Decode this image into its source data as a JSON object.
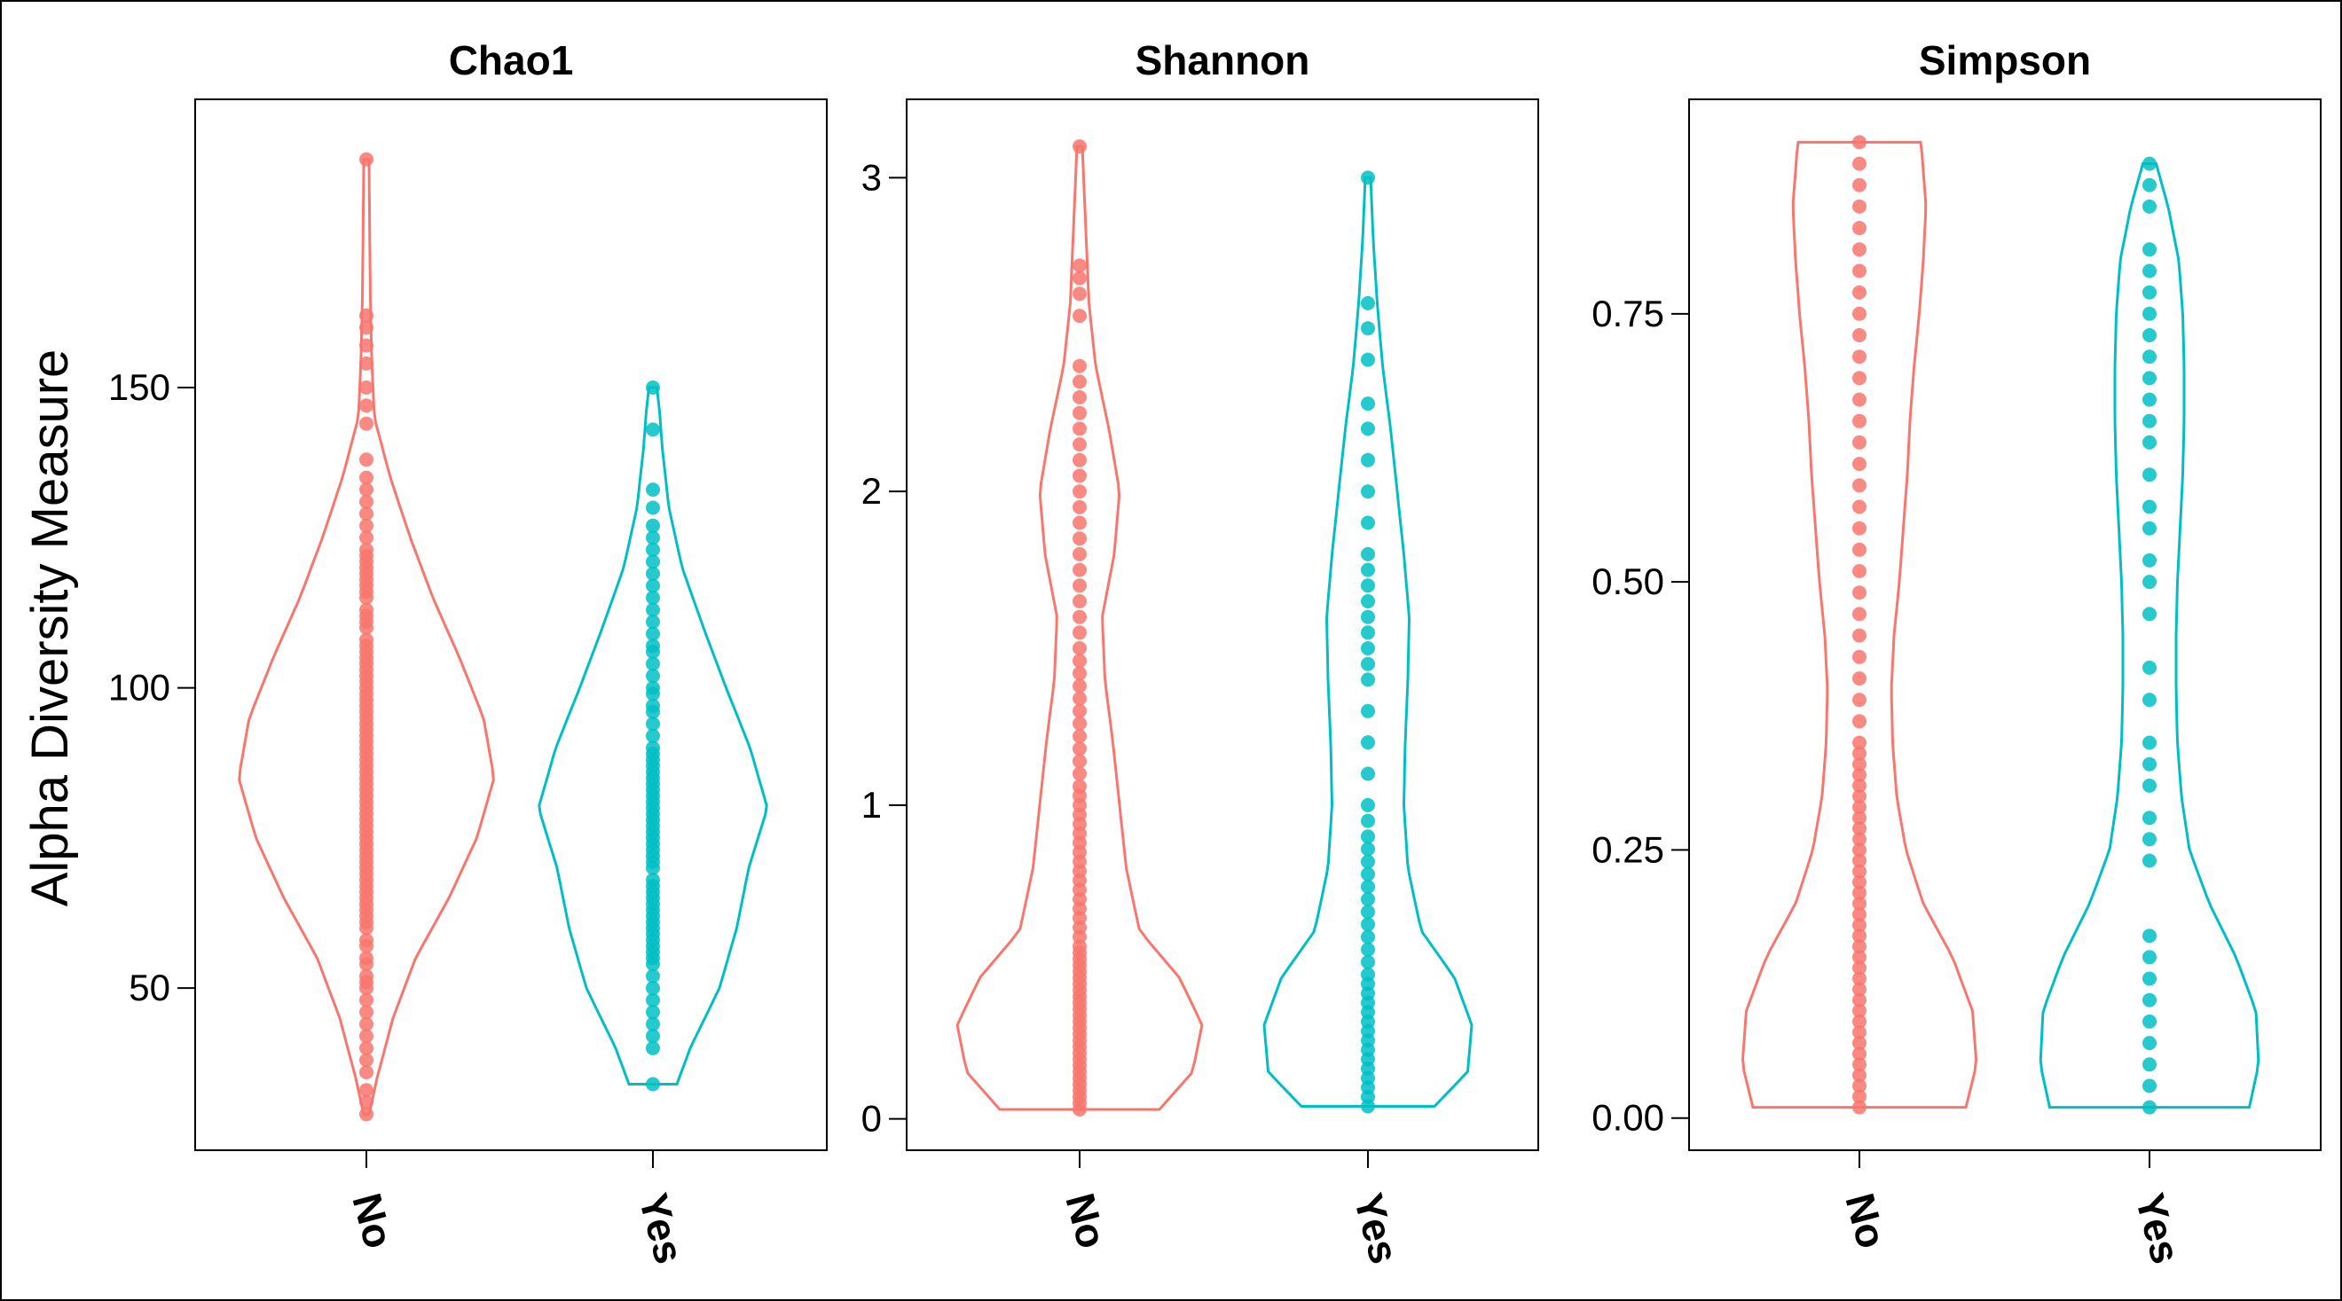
{
  "chart_data": {
    "type": "violin",
    "ylabel": "Alpha Diversity Measure",
    "categories": [
      "No",
      "Yes"
    ],
    "colors": {
      "No": "#F8766D",
      "Yes": "#00BFC4",
      "axis": "#000000"
    },
    "panels": [
      {
        "title": "Chao1",
        "ylim": [
          23,
          198
        ],
        "ticks": [
          50,
          100,
          150
        ],
        "tick_labels": [
          "50",
          "100",
          "150"
        ],
        "groups": [
          {
            "name": "No",
            "min": 29,
            "max": 188,
            "density": [
              [
                29,
                0.02
              ],
              [
                35,
                0.08
              ],
              [
                45,
                0.2
              ],
              [
                55,
                0.37
              ],
              [
                65,
                0.62
              ],
              [
                75,
                0.83
              ],
              [
                85,
                0.96
              ],
              [
                95,
                0.88
              ],
              [
                105,
                0.7
              ],
              [
                115,
                0.5
              ],
              [
                125,
                0.33
              ],
              [
                135,
                0.18
              ],
              [
                145,
                0.06
              ],
              [
                155,
                0.04
              ],
              [
                165,
                0.03
              ],
              [
                175,
                0.025
              ],
              [
                188,
                0.02
              ]
            ],
            "points": [
              29,
              31,
              33,
              36,
              38,
              40,
              42,
              44,
              46,
              48,
              50,
              51,
              52,
              54,
              55,
              57,
              58,
              60,
              61,
              62,
              63,
              64,
              65,
              66,
              67,
              68,
              69,
              70,
              71,
              72,
              73,
              74,
              75,
              76,
              77,
              78,
              79,
              80,
              81,
              82,
              83,
              84,
              85,
              86,
              87,
              88,
              89,
              90,
              91,
              92,
              93,
              94,
              95,
              96,
              97,
              98,
              99,
              100,
              101,
              102,
              103,
              104,
              105,
              106,
              107,
              108,
              110,
              111,
              112,
              113,
              115,
              116,
              117,
              118,
              119,
              120,
              121,
              122,
              123,
              125,
              127,
              129,
              131,
              133,
              135,
              138,
              144,
              147,
              150,
              154,
              157,
              160,
              162,
              188
            ]
          },
          {
            "name": "Yes",
            "min": 34,
            "max": 150,
            "density": [
              [
                34,
                0.18
              ],
              [
                40,
                0.28
              ],
              [
                50,
                0.5
              ],
              [
                60,
                0.63
              ],
              [
                70,
                0.72
              ],
              [
                80,
                0.86
              ],
              [
                90,
                0.73
              ],
              [
                100,
                0.55
              ],
              [
                110,
                0.38
              ],
              [
                120,
                0.22
              ],
              [
                130,
                0.12
              ],
              [
                140,
                0.07
              ],
              [
                146,
                0.05
              ],
              [
                150,
                0.03
              ]
            ],
            "points": [
              34,
              40,
              42,
              44,
              46,
              48,
              50,
              52,
              54,
              55,
              56,
              57,
              58,
              59,
              60,
              61,
              62,
              63,
              64,
              65,
              66,
              67,
              68,
              70,
              71,
              72,
              73,
              74,
              75,
              76,
              77,
              78,
              79,
              80,
              81,
              82,
              83,
              84,
              85,
              86,
              87,
              88,
              89,
              90,
              92,
              94,
              96,
              97,
              99,
              100,
              102,
              104,
              106,
              107,
              109,
              111,
              113,
              115,
              117,
              119,
              121,
              123,
              125,
              127,
              130,
              133,
              143,
              150
            ]
          }
        ]
      },
      {
        "title": "Shannon",
        "ylim": [
          -0.1,
          3.25
        ],
        "ticks": [
          0,
          1,
          2,
          3
        ],
        "tick_labels": [
          "0",
          "1",
          "2",
          "3"
        ],
        "groups": [
          {
            "name": "No",
            "min": 0.03,
            "max": 3.1,
            "density": [
              [
                0.03,
                0.6
              ],
              [
                0.15,
                0.85
              ],
              [
                0.3,
                0.92
              ],
              [
                0.45,
                0.75
              ],
              [
                0.6,
                0.45
              ],
              [
                0.8,
                0.35
              ],
              [
                1.0,
                0.3
              ],
              [
                1.2,
                0.25
              ],
              [
                1.4,
                0.19
              ],
              [
                1.6,
                0.17
              ],
              [
                1.8,
                0.26
              ],
              [
                2.0,
                0.3
              ],
              [
                2.2,
                0.22
              ],
              [
                2.4,
                0.12
              ],
              [
                2.6,
                0.07
              ],
              [
                2.8,
                0.05
              ],
              [
                3.0,
                0.03
              ],
              [
                3.1,
                0.02
              ]
            ],
            "points": [
              0.03,
              0.05,
              0.07,
              0.09,
              0.11,
              0.13,
              0.15,
              0.17,
              0.19,
              0.21,
              0.23,
              0.25,
              0.27,
              0.29,
              0.31,
              0.33,
              0.35,
              0.37,
              0.39,
              0.41,
              0.43,
              0.45,
              0.47,
              0.49,
              0.51,
              0.53,
              0.55,
              0.58,
              0.61,
              0.64,
              0.67,
              0.7,
              0.73,
              0.76,
              0.79,
              0.82,
              0.85,
              0.88,
              0.91,
              0.94,
              0.97,
              1.0,
              1.03,
              1.06,
              1.1,
              1.14,
              1.18,
              1.22,
              1.26,
              1.3,
              1.34,
              1.38,
              1.42,
              1.46,
              1.5,
              1.55,
              1.6,
              1.65,
              1.7,
              1.75,
              1.8,
              1.85,
              1.9,
              1.95,
              2.0,
              2.05,
              2.1,
              2.15,
              2.2,
              2.25,
              2.3,
              2.35,
              2.4,
              2.56,
              2.63,
              2.68,
              2.72,
              3.1
            ]
          },
          {
            "name": "Yes",
            "min": 0.04,
            "max": 3.0,
            "density": [
              [
                0.04,
                0.5
              ],
              [
                0.15,
                0.75
              ],
              [
                0.3,
                0.78
              ],
              [
                0.45,
                0.65
              ],
              [
                0.6,
                0.4
              ],
              [
                0.8,
                0.3
              ],
              [
                1.0,
                0.27
              ],
              [
                1.2,
                0.28
              ],
              [
                1.4,
                0.3
              ],
              [
                1.6,
                0.31
              ],
              [
                1.8,
                0.27
              ],
              [
                2.0,
                0.22
              ],
              [
                2.2,
                0.17
              ],
              [
                2.4,
                0.11
              ],
              [
                2.6,
                0.07
              ],
              [
                2.8,
                0.04
              ],
              [
                3.0,
                0.02
              ]
            ],
            "points": [
              0.04,
              0.07,
              0.1,
              0.13,
              0.16,
              0.19,
              0.22,
              0.25,
              0.28,
              0.31,
              0.34,
              0.37,
              0.4,
              0.43,
              0.46,
              0.5,
              0.54,
              0.58,
              0.62,
              0.66,
              0.7,
              0.74,
              0.78,
              0.82,
              0.86,
              0.9,
              0.95,
              1.0,
              1.1,
              1.2,
              1.3,
              1.4,
              1.45,
              1.5,
              1.55,
              1.6,
              1.65,
              1.7,
              1.75,
              1.8,
              1.9,
              2.0,
              2.1,
              2.2,
              2.28,
              2.42,
              2.52,
              2.6,
              3.0
            ]
          }
        ]
      },
      {
        "title": "Simpson",
        "ylim": [
          -0.03,
          0.95
        ],
        "ticks": [
          0,
          0.25,
          0.5,
          0.75
        ],
        "tick_labels": [
          "0.00",
          "0.25",
          "0.50",
          "0.75"
        ],
        "groups": [
          {
            "name": "No",
            "min": 0.01,
            "max": 0.91,
            "density": [
              [
                0.01,
                0.8
              ],
              [
                0.05,
                0.88
              ],
              [
                0.1,
                0.85
              ],
              [
                0.15,
                0.7
              ],
              [
                0.2,
                0.48
              ],
              [
                0.25,
                0.35
              ],
              [
                0.3,
                0.28
              ],
              [
                0.35,
                0.25
              ],
              [
                0.4,
                0.24
              ],
              [
                0.45,
                0.26
              ],
              [
                0.5,
                0.3
              ],
              [
                0.55,
                0.33
              ],
              [
                0.6,
                0.36
              ],
              [
                0.65,
                0.38
              ],
              [
                0.7,
                0.41
              ],
              [
                0.75,
                0.45
              ],
              [
                0.8,
                0.48
              ],
              [
                0.85,
                0.5
              ],
              [
                0.9,
                0.47
              ],
              [
                0.91,
                0.46
              ]
            ],
            "points": [
              0.01,
              0.02,
              0.03,
              0.04,
              0.05,
              0.06,
              0.07,
              0.08,
              0.09,
              0.1,
              0.11,
              0.12,
              0.13,
              0.14,
              0.15,
              0.16,
              0.17,
              0.18,
              0.19,
              0.2,
              0.21,
              0.22,
              0.23,
              0.24,
              0.25,
              0.26,
              0.27,
              0.28,
              0.29,
              0.3,
              0.31,
              0.32,
              0.33,
              0.34,
              0.35,
              0.37,
              0.39,
              0.41,
              0.43,
              0.45,
              0.47,
              0.49,
              0.51,
              0.53,
              0.55,
              0.57,
              0.59,
              0.61,
              0.63,
              0.65,
              0.67,
              0.69,
              0.71,
              0.73,
              0.75,
              0.77,
              0.79,
              0.81,
              0.83,
              0.85,
              0.87,
              0.89,
              0.91
            ]
          },
          {
            "name": "Yes",
            "min": 0.01,
            "max": 0.89,
            "density": [
              [
                0.01,
                0.75
              ],
              [
                0.05,
                0.82
              ],
              [
                0.1,
                0.8
              ],
              [
                0.15,
                0.65
              ],
              [
                0.2,
                0.45
              ],
              [
                0.25,
                0.3
              ],
              [
                0.3,
                0.24
              ],
              [
                0.35,
                0.21
              ],
              [
                0.4,
                0.2
              ],
              [
                0.45,
                0.2
              ],
              [
                0.5,
                0.21
              ],
              [
                0.55,
                0.23
              ],
              [
                0.6,
                0.25
              ],
              [
                0.65,
                0.26
              ],
              [
                0.7,
                0.26
              ],
              [
                0.75,
                0.25
              ],
              [
                0.8,
                0.22
              ],
              [
                0.85,
                0.14
              ],
              [
                0.89,
                0.05
              ]
            ],
            "points": [
              0.01,
              0.03,
              0.05,
              0.07,
              0.09,
              0.11,
              0.13,
              0.15,
              0.17,
              0.24,
              0.26,
              0.28,
              0.31,
              0.33,
              0.35,
              0.39,
              0.42,
              0.47,
              0.5,
              0.52,
              0.55,
              0.57,
              0.6,
              0.63,
              0.65,
              0.67,
              0.69,
              0.71,
              0.73,
              0.75,
              0.77,
              0.79,
              0.81,
              0.85,
              0.87,
              0.89
            ]
          }
        ]
      }
    ]
  }
}
